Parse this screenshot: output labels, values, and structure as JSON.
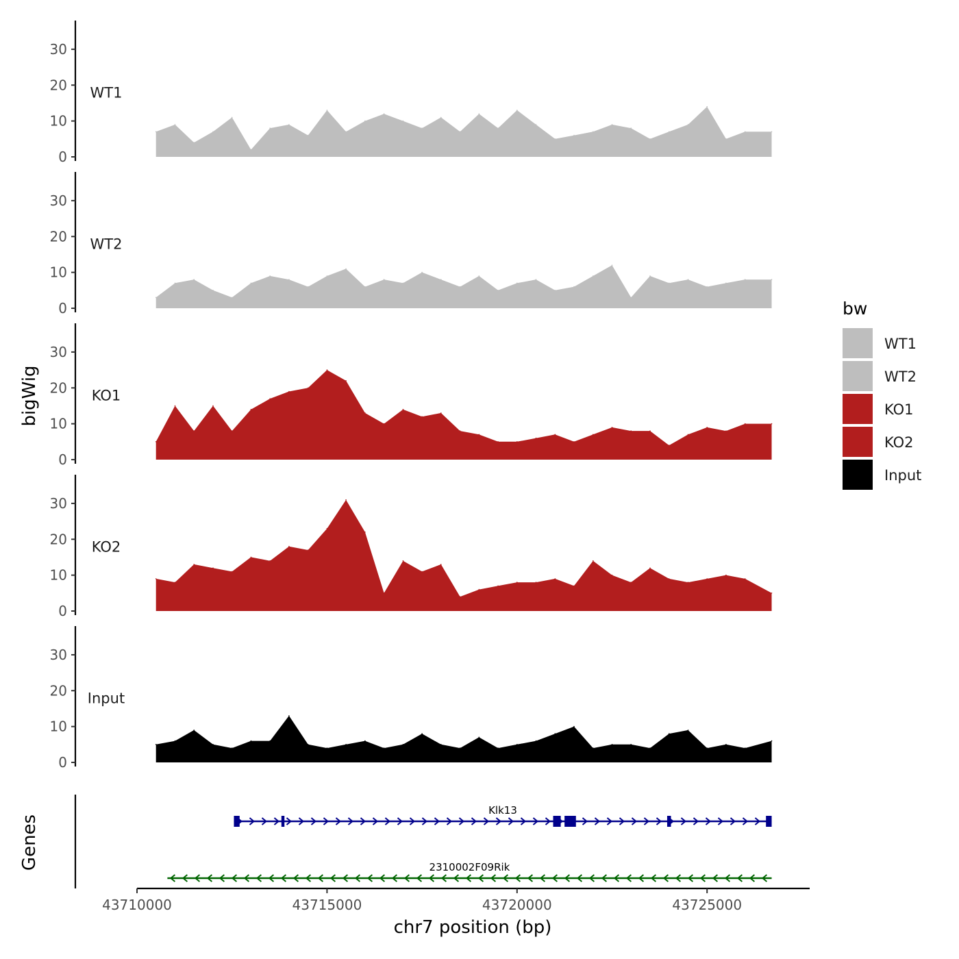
{
  "chart_data": {
    "type": "area",
    "x_label": "chr7 position (bp)",
    "y_label": "bigWig",
    "genes_label": "Genes",
    "chromosome": "chr7",
    "region": [
      43710500,
      43726700
    ],
    "xlim": [
      43710000,
      43727700
    ],
    "x_ticks": [
      43710000,
      43715000,
      43720000,
      43725000
    ],
    "x_tick_labels": [
      "43710000",
      "43715000",
      "43720000",
      "43725000"
    ],
    "ylim": [
      0,
      38
    ],
    "y_ticks": [
      0,
      10,
      20,
      30
    ],
    "y_tick_labels": [
      "0",
      "10",
      "20",
      "30"
    ],
    "legend": {
      "title": "bw",
      "entries": [
        {
          "label": "WT1",
          "color": "#bebebe"
        },
        {
          "label": "WT2",
          "color": "#bebebe"
        },
        {
          "label": "KO1",
          "color": "#b21e1e"
        },
        {
          "label": "KO2",
          "color": "#b21e1e"
        },
        {
          "label": "Input",
          "color": "#000000"
        }
      ]
    },
    "x": [
      43710500,
      43711000,
      43711500,
      43712000,
      43712500,
      43713000,
      43713500,
      43714000,
      43714500,
      43715000,
      43715500,
      43716000,
      43716500,
      43717000,
      43717500,
      43718000,
      43718500,
      43719000,
      43719500,
      43720000,
      43720500,
      43721000,
      43721500,
      43722000,
      43722500,
      43723000,
      43723500,
      43724000,
      43724500,
      43725000,
      43725500,
      43726000,
      43726700
    ],
    "series": [
      {
        "name": "WT1",
        "color": "#bebebe",
        "values": [
          7,
          9,
          4,
          7,
          11,
          2,
          8,
          9,
          6,
          13,
          7,
          10,
          12,
          10,
          8,
          11,
          7,
          12,
          8,
          13,
          9,
          5,
          6,
          7,
          9,
          8,
          5,
          7,
          9,
          14,
          5,
          7,
          7
        ]
      },
      {
        "name": "WT2",
        "color": "#bebebe",
        "values": [
          3,
          7,
          8,
          5,
          3,
          7,
          9,
          8,
          6,
          9,
          11,
          6,
          8,
          7,
          10,
          8,
          6,
          9,
          5,
          7,
          8,
          5,
          6,
          9,
          12,
          3,
          9,
          7,
          8,
          6,
          7,
          8,
          8
        ]
      },
      {
        "name": "KO1",
        "color": "#b21e1e",
        "values": [
          5,
          15,
          8,
          15,
          8,
          14,
          17,
          19,
          20,
          25,
          22,
          13,
          10,
          14,
          12,
          13,
          8,
          7,
          5,
          5,
          6,
          7,
          5,
          7,
          9,
          8,
          8,
          4,
          7,
          9,
          8,
          10,
          10
        ]
      },
      {
        "name": "KO2",
        "color": "#b21e1e",
        "values": [
          9,
          8,
          13,
          12,
          11,
          15,
          14,
          18,
          17,
          23,
          31,
          22,
          5,
          14,
          11,
          13,
          4,
          6,
          7,
          8,
          8,
          9,
          7,
          14,
          10,
          8,
          12,
          9,
          8,
          9,
          10,
          9,
          5
        ]
      },
      {
        "name": "Input",
        "color": "#000000",
        "values": [
          5,
          6,
          9,
          5,
          4,
          6,
          6,
          13,
          5,
          4,
          5,
          6,
          4,
          5,
          8,
          5,
          4,
          7,
          4,
          5,
          6,
          8,
          10,
          4,
          5,
          5,
          4,
          8,
          9,
          4,
          5,
          4,
          6
        ]
      }
    ],
    "genes": [
      {
        "name": "Klk13",
        "strand": "+",
        "color": "#00008b",
        "start": 43712550,
        "end": 43726700,
        "exons": [
          [
            43712550,
            43712700
          ],
          [
            43713800,
            43713880
          ],
          [
            43720950,
            43721150
          ],
          [
            43721250,
            43721550
          ],
          [
            43723950,
            43724050
          ],
          [
            43726550,
            43726700
          ]
        ]
      },
      {
        "name": "2310002F09Rik",
        "strand": "-",
        "color": "#006400",
        "start": 43710800,
        "end": 43726700,
        "exons": []
      }
    ]
  }
}
